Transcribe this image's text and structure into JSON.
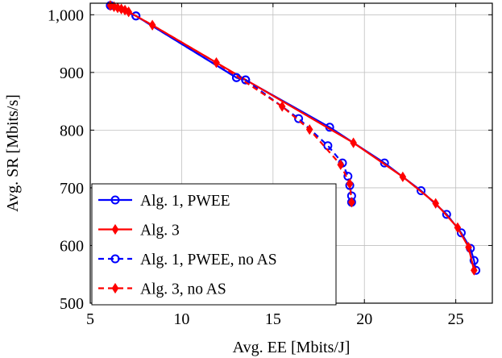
{
  "chart_data": {
    "type": "line",
    "title": "",
    "xlabel": "Avg. EE [Mbits/J]",
    "ylabel": "Avg. SR [Mbits/s]",
    "xlim": [
      5,
      27
    ],
    "ylim": [
      500,
      1020
    ],
    "xticks": [
      5,
      10,
      15,
      20,
      25
    ],
    "xtick_labels": [
      "5",
      "10",
      "15",
      "20",
      "25"
    ],
    "yticks": [
      500,
      600,
      700,
      800,
      900,
      1000
    ],
    "ytick_labels": [
      "500",
      "600",
      "700",
      "800",
      "900",
      "1,000"
    ],
    "grid": true,
    "legend_position": "bottom-left",
    "series": [
      {
        "name": "Alg. 1, PWEE",
        "color": "#0000ff",
        "line_style": "solid",
        "marker": "circle",
        "x": [
          6.1,
          7.5,
          13.0,
          13.5,
          18.1,
          21.1,
          23.1,
          24.5,
          25.3,
          25.8,
          26.0,
          26.1
        ],
        "y": [
          1016,
          998,
          891,
          887,
          805,
          743,
          695,
          654,
          622,
          595,
          574,
          557
        ]
      },
      {
        "name": "Alg. 3",
        "color": "#ff0000",
        "line_style": "solid",
        "marker": "diamond",
        "x": [
          6.1,
          6.3,
          6.5,
          6.7,
          6.9,
          7.1,
          8.4,
          11.9,
          19.4,
          22.1,
          23.9,
          25.1,
          25.7,
          26.0
        ],
        "y": [
          1016,
          1014,
          1012,
          1010,
          1008,
          1005,
          982,
          917,
          778,
          719,
          673,
          631,
          597,
          557
        ]
      },
      {
        "name": "Alg. 1, PWEE, no AS",
        "color": "#0000ff",
        "line_style": "dashed",
        "marker": "circle",
        "x": [
          6.1,
          7.5,
          13.0,
          13.5,
          16.4,
          18.0,
          18.8,
          19.1,
          19.2,
          19.3,
          19.3
        ],
        "y": [
          1016,
          998,
          891,
          887,
          820,
          773,
          743,
          720,
          704,
          686,
          675
        ]
      },
      {
        "name": "Alg. 3, no AS",
        "color": "#ff0000",
        "line_style": "dashed",
        "marker": "diamond",
        "x": [
          6.1,
          6.3,
          6.5,
          6.7,
          6.9,
          7.1,
          8.4,
          11.9,
          15.5,
          17.0,
          18.7,
          19.2,
          19.3
        ],
        "y": [
          1016,
          1014,
          1012,
          1010,
          1008,
          1005,
          982,
          917,
          841,
          801,
          740,
          707,
          675
        ]
      }
    ]
  }
}
